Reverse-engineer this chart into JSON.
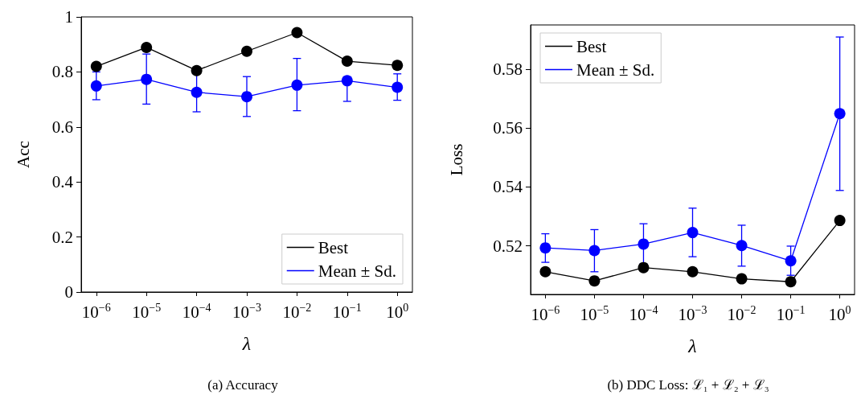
{
  "chart_data": [
    {
      "type": "line",
      "title": "(a) Accuracy",
      "xlabel": "λ",
      "ylabel": "Acc",
      "log": "x",
      "marker": "circle",
      "line_style": "solid",
      "grid": false,
      "legend": "bottom right",
      "x": [
        1e-06,
        1e-05,
        0.0001,
        0.001,
        0.01,
        0.1,
        1
      ],
      "xlim": [
        5e-07,
        2
      ],
      "xticks": [
        {
          "value": 1e-06,
          "label": "10$^{−6}$"
        },
        {
          "value": 1e-05,
          "label": "10$^{−5}$"
        },
        {
          "value": 0.0001,
          "label": "10$^{−4}$"
        },
        {
          "value": 0.001,
          "label": "10$^{−3}$"
        },
        {
          "value": 0.01,
          "label": "10$^{−2}$"
        },
        {
          "value": 0.1,
          "label": "10$^{−1}$"
        },
        {
          "value": 1,
          "label": "10$^{0}$"
        }
      ],
      "ylim": [
        0,
        1
      ],
      "yticks": [
        0,
        0.2,
        0.4,
        0.6,
        0.8,
        1
      ],
      "series": [
        {
          "name": "Best",
          "color": "#000000",
          "values": [
            0.82,
            0.889,
            0.805,
            0.875,
            0.943,
            0.839,
            0.824
          ]
        },
        {
          "name": "Mean ± Sd.",
          "color": "#0000ff",
          "values": [
            0.749,
            0.773,
            0.726,
            0.71,
            0.752,
            0.768,
            0.744
          ],
          "errors": [
            [
              0.699,
              0.8
            ],
            [
              0.683,
              0.865
            ],
            [
              0.655,
              0.798
            ],
            [
              0.638,
              0.783
            ],
            [
              0.659,
              0.849
            ],
            [
              0.693,
              0.768
            ],
            [
              0.697,
              0.793
            ]
          ]
        }
      ]
    },
    {
      "type": "line",
      "title": "(b) DDC Loss: ℒ₁ + ℒ₂ + ℒ₃",
      "xlabel": "λ",
      "ylabel": "Loss",
      "log": "x",
      "marker": "circle",
      "line_style": "solid",
      "grid": false,
      "legend": "top left",
      "x": [
        1e-06,
        1e-05,
        0.0001,
        0.001,
        0.01,
        0.1,
        1
      ],
      "xlim": [
        5e-07,
        2
      ],
      "xticks": [
        {
          "value": 1e-06,
          "label": "10$^{−6}$"
        },
        {
          "value": 1e-05,
          "label": "10$^{−5}$"
        },
        {
          "value": 0.0001,
          "label": "10$^{−4}$"
        },
        {
          "value": 0.001,
          "label": "10$^{−3}$"
        },
        {
          "value": 0.01,
          "label": "10$^{−2}$"
        },
        {
          "value": 0.1,
          "label": "10$^{−1}$"
        },
        {
          "value": 1,
          "label": "10$^{0}$"
        }
      ],
      "ylim": [
        0.5035,
        0.595
      ],
      "yticks": [
        0.52,
        0.54,
        0.56,
        0.58
      ],
      "series": [
        {
          "name": "Best",
          "color": "#000000",
          "values": [
            0.5112,
            0.5081,
            0.5126,
            0.5112,
            0.5088,
            0.5078,
            0.5286
          ]
        },
        {
          "name": "Mean ± Sd.",
          "color": "#0000ff",
          "values": [
            0.5193,
            0.5184,
            0.5206,
            0.5245,
            0.5201,
            0.5149,
            0.5649
          ],
          "errors": [
            [
              0.5144,
              0.5241
            ],
            [
              0.5112,
              0.5255
            ],
            [
              0.5138,
              0.5275
            ],
            [
              0.5163,
              0.5328
            ],
            [
              0.5131,
              0.527
            ],
            [
              0.51,
              0.5199
            ],
            [
              0.5388,
              0.5909
            ]
          ]
        }
      ]
    }
  ]
}
